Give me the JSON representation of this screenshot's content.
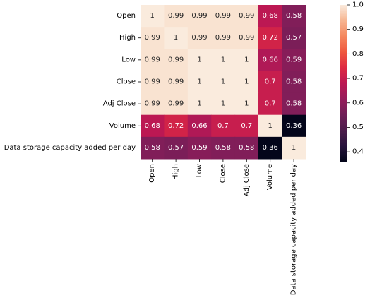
{
  "chart_data": {
    "type": "heatmap",
    "title": "",
    "xlabel": "",
    "ylabel": "",
    "rows": [
      "Open",
      "High",
      "Low",
      "Close",
      "Adj Close",
      "Volume",
      "Data storage capacity added per day"
    ],
    "columns": [
      "Open",
      "High",
      "Low",
      "Close",
      "Adj Close",
      "Volume",
      "Data storage capacity added per day"
    ],
    "values": [
      [
        1,
        0.99,
        0.99,
        0.99,
        0.99,
        0.68,
        0.58
      ],
      [
        0.99,
        1,
        0.99,
        0.99,
        0.99,
        0.72,
        0.57
      ],
      [
        0.99,
        0.99,
        1,
        1,
        1,
        0.66,
        0.59
      ],
      [
        0.99,
        0.99,
        1,
        1,
        1,
        0.7,
        0.58
      ],
      [
        0.99,
        0.99,
        1,
        1,
        1,
        0.7,
        0.58
      ],
      [
        0.68,
        0.72,
        0.66,
        0.7,
        0.7,
        1,
        0.36
      ],
      [
        0.58,
        0.57,
        0.59,
        0.58,
        0.58,
        0.36,
        1
      ]
    ],
    "annotations": [
      [
        "1",
        "0.99",
        "0.99",
        "0.99",
        "0.99",
        "0.68",
        "0.58"
      ],
      [
        "0.99",
        "1",
        "0.99",
        "0.99",
        "0.99",
        "0.72",
        "0.57"
      ],
      [
        "0.99",
        "0.99",
        "1",
        "1",
        "1",
        "0.66",
        "0.59"
      ],
      [
        "0.99",
        "0.99",
        "1",
        "1",
        "1",
        "0.7",
        "0.58"
      ],
      [
        "0.99",
        "0.99",
        "1",
        "1",
        "1",
        "0.7",
        "0.58"
      ],
      [
        "0.68",
        "0.72",
        "0.66",
        "0.7",
        "0.7",
        "1",
        "0.36"
      ],
      [
        "0.58",
        "0.57",
        "0.59",
        "0.58",
        "0.58",
        "0.36",
        "1"
      ]
    ],
    "colormap": "rocket",
    "colorbar": {
      "range": [
        0.36,
        1.0
      ],
      "ticks": [
        0.4,
        0.5,
        0.6,
        0.7,
        0.8,
        0.9,
        1.0
      ],
      "tick_labels": [
        "0.4",
        "0.5",
        "0.6",
        "0.7",
        "0.8",
        "0.9",
        "1.0"
      ],
      "placement": "right"
    },
    "grid": false,
    "legend": "none"
  }
}
